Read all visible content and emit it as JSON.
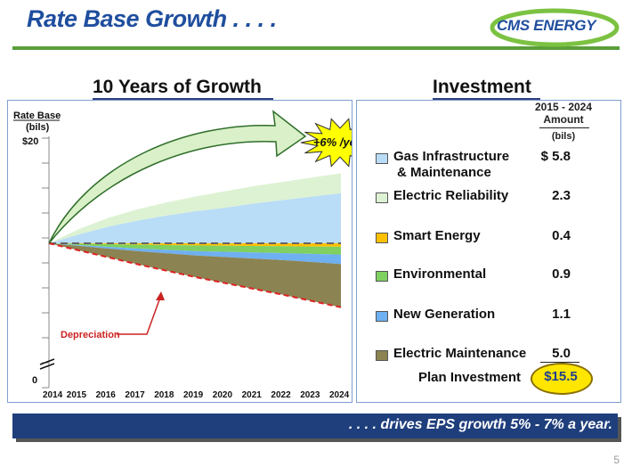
{
  "header": {
    "title": "Rate Base Growth . . . .",
    "logo_text": "CMS ENERGY"
  },
  "left_heading": "10 Years of Growth",
  "right_heading": "Investment",
  "chart_data": {
    "type": "area",
    "ylabel": "Rate Base",
    "ylabel_units": "(bils)",
    "y_top_tick_label": "$20",
    "y_bottom_tick_label": "0",
    "x": [
      "2014",
      "2015",
      "2016",
      "2017",
      "2018",
      "2019",
      "2020",
      "2021",
      "2022",
      "2023",
      "2024"
    ],
    "growth_callout": "+6% /year",
    "depreciation_label": "Depreciation",
    "series": [
      {
        "name": "Gas Infrastructure & Maintenance",
        "color": "#b9dcf7",
        "values": [
          0,
          1.0,
          1.9,
          2.6,
          3.2,
          3.7,
          4.1,
          4.6,
          5.0,
          5.4,
          5.8
        ]
      },
      {
        "name": "Electric Reliability",
        "color": "#ddf2d3",
        "values": [
          0,
          0.6,
          1.0,
          1.3,
          1.5,
          1.7,
          1.9,
          2.0,
          2.1,
          2.2,
          2.3
        ]
      },
      {
        "name": "Smart Energy",
        "color": "#ffc000",
        "values": [
          0,
          0.05,
          0.1,
          0.15,
          0.2,
          0.25,
          0.28,
          0.31,
          0.34,
          0.37,
          0.4
        ]
      },
      {
        "name": "Environmental",
        "color": "#7fd060",
        "values": [
          0,
          0.15,
          0.3,
          0.45,
          0.55,
          0.65,
          0.7,
          0.75,
          0.8,
          0.85,
          0.9
        ]
      },
      {
        "name": "New Generation",
        "color": "#6fb0f0",
        "values": [
          0,
          0.1,
          0.2,
          0.3,
          0.4,
          0.5,
          0.6,
          0.7,
          0.8,
          0.95,
          1.1
        ]
      },
      {
        "name": "Electric Maintenance",
        "color": "#8c8352",
        "values": [
          0,
          0.5,
          1.0,
          1.5,
          2.0,
          2.5,
          3.0,
          3.5,
          4.0,
          4.5,
          5.0
        ]
      }
    ]
  },
  "investment": {
    "col_header_years": "2015 - 2024",
    "col_header_amount": "Amount",
    "col_header_units": "(bils)",
    "rows": [
      {
        "label": "Gas Infrastructure",
        "label2": "& Maintenance",
        "value": "$ 5.8",
        "color": "#b9dcf7"
      },
      {
        "label": "Electric Reliability",
        "value": "2.3",
        "color": "#ddf2d3"
      },
      {
        "label": "Smart Energy",
        "value": "0.4",
        "color": "#ffc000"
      },
      {
        "label": "Environmental",
        "value": "0.9",
        "color": "#7fd060"
      },
      {
        "label": "New Generation",
        "value": "1.1",
        "color": "#6fb0f0"
      },
      {
        "label": "Electric Maintenance",
        "value": "5.0",
        "color": "#8c8352"
      }
    ],
    "plan_label": "Plan Investment",
    "plan_total": "$15.5"
  },
  "tagline": ". . . . drives EPS growth 5% - 7% a year.",
  "page_number": "5"
}
